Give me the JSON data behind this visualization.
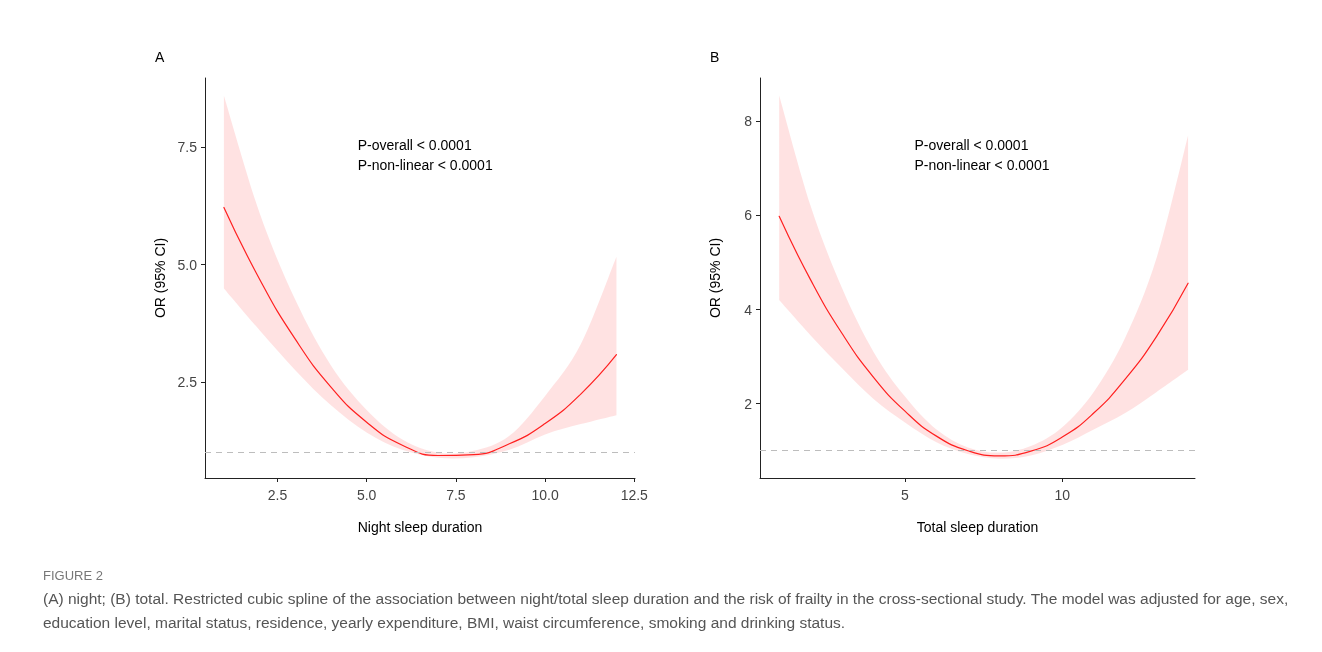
{
  "chart_data": [
    {
      "type": "line",
      "title": "A",
      "xlabel": "Night sleep duration",
      "ylabel": "OR (95% CI)",
      "annotations": [
        "P-overall < 0.0001",
        "P-non-linear < 0.0001",
        "FIGURE 2",
        "(A) night; (B) total. Restricted cubic spline of the association between night/total sleep duration and the risk of frailty in the cross-sectional study. The model was adjusted for age, sex, education level, marital status, residence, yearly expenditure, BMI, waist circumference, smoking and drinking status."
      ],
      "x": [
        1,
        2,
        3,
        4,
        5,
        6,
        7,
        8,
        9,
        10,
        11,
        12
      ],
      "series": [
        {
          "color": "#ff2020",
          "values": [
            6.22,
            4.69,
            3.41,
            2.39,
            1.64,
            1.15,
            0.93,
            0.95,
            1.18,
            1.61,
            2.24,
            3.08
          ],
          "lower": [
            4.49,
            3.6,
            2.75,
            2.0,
            1.42,
            1.05,
            0.88,
            0.89,
            1.05,
            1.38,
            1.6,
            1.79
          ],
          "upper": [
            8.6,
            6.1,
            4.25,
            2.85,
            1.9,
            1.27,
            0.99,
            1.03,
            1.35,
            2.2,
            3.3,
            5.17
          ]
        }
      ],
      "xlim": [
        0.47,
        12.52
      ],
      "xticks": [
        2.5,
        {
          "value": 5,
          "label": "5.0"
        },
        7.5,
        {
          "value": 10,
          "label": "10.0"
        },
        12.5
      ],
      "ylim": [
        0.45,
        8.98
      ],
      "yticks": [
        2.5,
        {
          "value": 5,
          "label": "5.0"
        },
        7.5
      ],
      "ref_lines": [
        {
          "axis": "y",
          "value": 1,
          "color": "#bdbdbd",
          "line_style": "dashed"
        }
      ],
      "grid": false,
      "marker": "none",
      "line_style": "solid"
    },
    {
      "type": "line",
      "title": "B",
      "xlabel": "Total sleep duration",
      "ylabel": "OR (95% CI)",
      "annotations": [
        "P-overall < 0.0001",
        "P-non-linear < 0.0001"
      ],
      "x": [
        1,
        2,
        3,
        4,
        5,
        6,
        7,
        8,
        9,
        10,
        11,
        12,
        13,
        14
      ],
      "series": [
        {
          "color": "#ff2020",
          "values": [
            5.98,
            4.63,
            3.49,
            2.56,
            1.84,
            1.31,
            1.0,
            0.89,
            0.99,
            1.29,
            1.8,
            2.52,
            3.43,
            4.56
          ],
          "lower": [
            4.2,
            3.45,
            2.75,
            2.1,
            1.6,
            1.18,
            0.93,
            0.83,
            0.9,
            1.12,
            1.45,
            1.8,
            2.25,
            2.72
          ],
          "upper": [
            8.55,
            6.2,
            4.45,
            3.1,
            2.15,
            1.45,
            1.07,
            0.96,
            1.1,
            1.5,
            2.25,
            3.4,
            5.1,
            7.7
          ]
        }
      ],
      "xlim": [
        0.39,
        14.22
      ],
      "xticks": [
        5,
        10
      ],
      "ylim": [
        0.42,
        8.92
      ],
      "yticks": [
        2,
        4,
        6,
        8
      ],
      "ref_lines": [
        {
          "axis": "y",
          "value": 1,
          "color": "#bdbdbd",
          "line_style": "dashed"
        }
      ],
      "grid": false,
      "marker": "none",
      "line_style": "solid"
    }
  ]
}
